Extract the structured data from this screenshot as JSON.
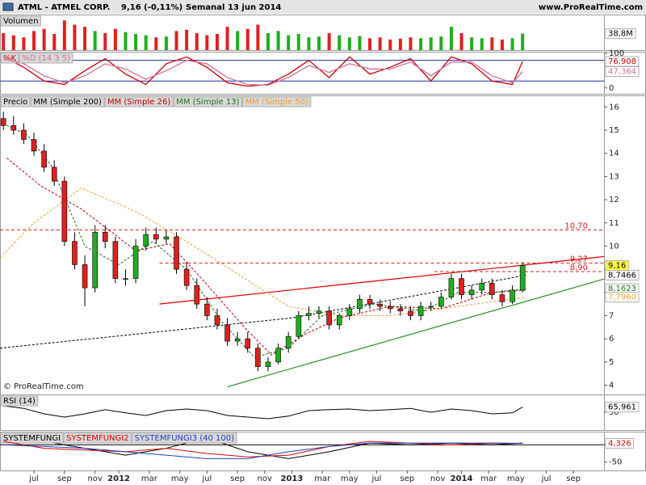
{
  "chart_data": {
    "type": "candlestick",
    "header": {
      "symbol": "ATML - ATMEL CORP.",
      "quote": "9,16 (-0,11%)",
      "period": "Semanal",
      "date": "13 jun 2014",
      "site": "www.ProRealTime.com"
    },
    "copyright": "© ProRealTime.com",
    "xlim": [
      0,
      178
    ],
    "xticks": [
      {
        "value": 10,
        "label": "jul"
      },
      {
        "value": 19,
        "label": "sep"
      },
      {
        "value": 28,
        "label": "nov"
      },
      {
        "value": 35,
        "label": "2012"
      },
      {
        "value": 44,
        "label": "mar"
      },
      {
        "value": 53,
        "label": "may"
      },
      {
        "value": 61,
        "label": "jul"
      },
      {
        "value": 70,
        "label": "sep"
      },
      {
        "value": 78,
        "label": "nov"
      },
      {
        "value": 86,
        "label": "2013"
      },
      {
        "value": 95,
        "label": "mar"
      },
      {
        "value": 103,
        "label": "may"
      },
      {
        "value": 111,
        "label": "jul"
      },
      {
        "value": 120,
        "label": "sep"
      },
      {
        "value": 129,
        "label": "nov"
      },
      {
        "value": 136,
        "label": "2014"
      },
      {
        "value": 144,
        "label": "mar"
      },
      {
        "value": 152,
        "label": "may"
      },
      {
        "value": 161,
        "label": "jul"
      },
      {
        "value": 169,
        "label": "sep"
      }
    ],
    "x": [
      1,
      4,
      7,
      10,
      13,
      16,
      19,
      22,
      25,
      28,
      31,
      34,
      37,
      40,
      43,
      46,
      49,
      52,
      55,
      58,
      61,
      64,
      67,
      70,
      73,
      76,
      79,
      82,
      85,
      88,
      91,
      94,
      97,
      100,
      103,
      106,
      109,
      112,
      115,
      118,
      121,
      124,
      127,
      130,
      133,
      136,
      139,
      142,
      145,
      148,
      151,
      154
    ],
    "price": {
      "title": "Precio",
      "ylim": [
        3.6,
        16.5
      ],
      "yticks": [
        4,
        5,
        6,
        7,
        8,
        9,
        10,
        11,
        12,
        13,
        14,
        15,
        16
      ],
      "up_color": "#1fae1f",
      "down_color": "#e02020",
      "open": [
        15.5,
        15.2,
        15.0,
        14.6,
        14.1,
        13.4,
        12.8,
        10.2,
        9.2,
        8.2,
        10.6,
        10.2,
        8.6,
        8.6,
        10.0,
        10.5,
        10.3,
        10.4,
        9.0,
        8.3,
        7.5,
        7.0,
        6.6,
        5.9,
        6.0,
        5.6,
        4.8,
        5.0,
        5.6,
        6.1,
        7.0,
        7.1,
        7.2,
        6.6,
        7.0,
        7.3,
        7.7,
        7.5,
        7.4,
        7.3,
        7.2,
        7.0,
        7.4,
        7.4,
        7.8,
        8.6,
        7.9,
        8.1,
        8.4,
        7.9,
        7.6,
        8.1
      ],
      "high": [
        15.8,
        15.6,
        15.3,
        14.9,
        14.4,
        13.7,
        13.0,
        10.6,
        9.6,
        10.9,
        10.9,
        10.4,
        9.0,
        10.3,
        10.8,
        10.8,
        10.7,
        10.6,
        9.3,
        8.6,
        7.8,
        7.3,
        6.9,
        6.3,
        6.3,
        5.8,
        5.2,
        5.8,
        6.3,
        7.2,
        7.4,
        7.4,
        7.4,
        7.1,
        7.5,
        7.9,
        7.9,
        7.7,
        7.6,
        7.5,
        7.4,
        7.6,
        7.6,
        8.0,
        8.8,
        8.8,
        8.3,
        8.6,
        8.6,
        8.1,
        8.3,
        9.3
      ],
      "low": [
        15.0,
        14.8,
        14.4,
        13.9,
        13.2,
        12.6,
        10.0,
        9.0,
        7.4,
        8.0,
        9.9,
        8.4,
        8.3,
        8.4,
        9.8,
        10.1,
        10.1,
        8.8,
        8.1,
        7.3,
        6.8,
        6.4,
        5.7,
        5.7,
        5.4,
        4.6,
        4.6,
        4.9,
        5.4,
        6.0,
        6.8,
        6.9,
        6.4,
        6.4,
        6.8,
        7.1,
        7.3,
        7.2,
        7.1,
        7.0,
        6.8,
        6.8,
        7.2,
        7.3,
        7.7,
        7.7,
        7.7,
        7.9,
        7.7,
        7.4,
        7.5,
        8.0
      ],
      "close": [
        15.2,
        15.0,
        14.6,
        14.1,
        13.4,
        12.8,
        10.2,
        9.2,
        8.2,
        10.6,
        10.2,
        8.6,
        8.6,
        10.0,
        10.5,
        10.3,
        10.4,
        9.0,
        8.3,
        7.5,
        7.0,
        6.6,
        5.9,
        6.0,
        5.6,
        4.8,
        5.0,
        5.6,
        6.1,
        7.0,
        7.1,
        7.2,
        6.6,
        7.0,
        7.3,
        7.7,
        7.5,
        7.4,
        7.3,
        7.2,
        7.0,
        7.4,
        7.4,
        7.8,
        8.6,
        7.9,
        8.1,
        8.4,
        7.9,
        7.6,
        8.1,
        9.16
      ],
      "last_label": "9,16",
      "moving_averages": [
        {
          "name": "MM (Simple 200)",
          "color": "#000000",
          "x": [
            0,
            40,
            86,
            120,
            155
          ],
          "values": [
            5.6,
            6.2,
            6.9,
            7.8,
            8.7466
          ],
          "last_label": "8,7466"
        },
        {
          "name": "MM (Simple 26)",
          "color": "#c00000",
          "x": [
            2,
            12,
            24,
            40,
            50,
            60,
            72,
            80,
            90,
            100,
            115,
            130,
            145,
            155
          ],
          "values": [
            13.8,
            12.6,
            11.6,
            9.8,
            10.1,
            8.5,
            6.5,
            5.3,
            6.2,
            6.9,
            7.4,
            7.3,
            8.0,
            8.1
          ]
        },
        {
          "name": "MM (Simple 13)",
          "color": "#207020",
          "x": [
            2,
            8,
            15,
            25,
            35,
            45,
            55,
            65,
            75,
            85,
            95,
            110,
            125,
            135,
            145,
            155
          ],
          "values": [
            15.2,
            14.8,
            13.5,
            10.0,
            9.2,
            10.2,
            9.0,
            6.8,
            5.2,
            5.6,
            7.0,
            7.5,
            7.2,
            8.0,
            8.0,
            8.1623
          ],
          "last_label": "8,1623"
        },
        {
          "name": "MM (Simple 50)",
          "color": "#f0a030",
          "x": [
            0,
            10,
            24,
            40,
            55,
            70,
            85,
            100,
            115,
            130,
            145,
            155
          ],
          "values": [
            9.5,
            11.0,
            12.5,
            11.5,
            10.2,
            8.8,
            7.4,
            7.0,
            7.0,
            7.3,
            7.6,
            7.796
          ],
          "last_label": "7,7960"
        }
      ],
      "trendlines": [
        {
          "color": "#e00000",
          "x": [
            47,
            178
          ],
          "values": [
            7.5,
            9.55
          ]
        },
        {
          "color": "#209020",
          "x": [
            67,
            178
          ],
          "values": [
            3.93,
            8.58
          ]
        }
      ],
      "levels": [
        {
          "value": 10.7,
          "label": "10,70",
          "x_start": 0
        },
        {
          "value": 9.27,
          "label": "9,27",
          "x_start": 47
        },
        {
          "value": 8.9,
          "label": "8,90",
          "x_start": 128
        }
      ]
    },
    "volume": {
      "title": "Volumen",
      "ylim": [
        0,
        80
      ],
      "values": [
        40,
        35,
        30,
        45,
        50,
        38,
        70,
        60,
        55,
        45,
        40,
        50,
        42,
        38,
        35,
        30,
        32,
        45,
        48,
        40,
        35,
        38,
        55,
        45,
        50,
        60,
        40,
        45,
        35,
        38,
        30,
        32,
        40,
        35,
        30,
        33,
        28,
        30,
        25,
        27,
        30,
        28,
        30,
        32,
        55,
        40,
        30,
        28,
        30,
        25,
        28,
        38.8
      ],
      "last_label": "38,8M"
    },
    "stochastic": {
      "ylim": [
        -17,
        105
      ],
      "yticks": [
        0,
        100
      ],
      "levels": [
        20,
        80
      ],
      "x": [
        1,
        7,
        13,
        19,
        25,
        31,
        37,
        43,
        49,
        55,
        61,
        67,
        73,
        79,
        85,
        91,
        97,
        103,
        109,
        115,
        121,
        127,
        133,
        139,
        145,
        151,
        154
      ],
      "series": [
        {
          "name": "%K",
          "color": "#cc0000",
          "values": [
            90,
            60,
            20,
            10,
            50,
            85,
            40,
            10,
            70,
            90,
            60,
            15,
            5,
            10,
            40,
            80,
            30,
            90,
            40,
            60,
            85,
            20,
            90,
            70,
            20,
            10,
            76.908
          ],
          "last_label": "76,908"
        },
        {
          "name": "%D (14 3 5)",
          "color": "#d070a0",
          "values": [
            85,
            70,
            35,
            15,
            35,
            70,
            55,
            25,
            50,
            80,
            70,
            30,
            10,
            8,
            30,
            65,
            45,
            70,
            55,
            55,
            75,
            35,
            75,
            75,
            35,
            15,
            47.364
          ],
          "last_label": "47,364"
        }
      ]
    },
    "rsi": {
      "title": "RSI (14)",
      "ylim": [
        0,
        100
      ],
      "yticks": [
        50
      ],
      "color": "#000000",
      "x": [
        1,
        7,
        13,
        19,
        25,
        31,
        37,
        43,
        49,
        55,
        61,
        67,
        73,
        79,
        85,
        91,
        97,
        103,
        109,
        115,
        121,
        127,
        133,
        139,
        145,
        151,
        154
      ],
      "values": [
        70,
        62,
        45,
        35,
        45,
        58,
        48,
        40,
        55,
        60,
        55,
        40,
        35,
        30,
        38,
        55,
        58,
        60,
        55,
        58,
        62,
        50,
        60,
        55,
        45,
        48,
        65.961
      ],
      "last_label": "65,961"
    },
    "systemfungi": {
      "ylim": [
        -74,
        38
      ],
      "yticks": [
        0,
        -50
      ],
      "levels": [
        0
      ],
      "x": [
        1,
        13,
        25,
        37,
        49,
        61,
        73,
        85,
        97,
        109,
        121,
        133,
        145,
        154
      ],
      "series": [
        {
          "name": "SYSTEMFUNGI",
          "color": "#000000",
          "values": [
            20,
            10,
            -10,
            -30,
            -10,
            20,
            -20,
            -40,
            -20,
            5,
            0,
            5,
            0,
            5
          ]
        },
        {
          "name": "SYSTEMFUNGI2",
          "color": "#e00000",
          "values": [
            10,
            -10,
            -15,
            -20,
            -10,
            -25,
            -35,
            -30,
            -5,
            10,
            5,
            0,
            5,
            4.326
          ],
          "last_label": "4,326"
        },
        {
          "name": "SYSTEMFUNGI3 (40 100)",
          "color": "#2040c0",
          "values": [
            0,
            -5,
            -10,
            -20,
            -30,
            -40,
            -40,
            -20,
            -5,
            5,
            5,
            5,
            5,
            4
          ]
        }
      ]
    }
  }
}
